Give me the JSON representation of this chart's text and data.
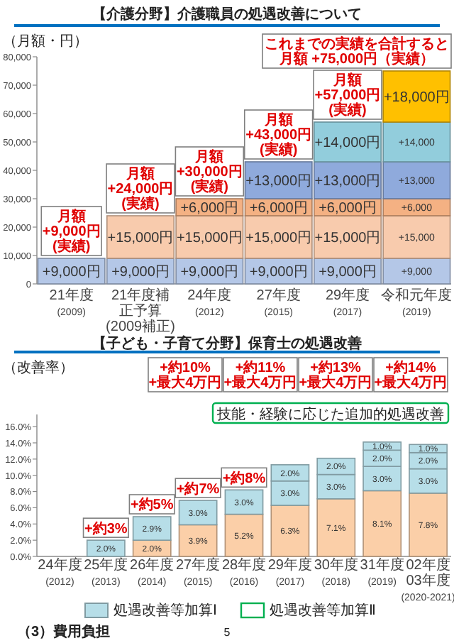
{
  "chart_data": [
    {
      "type": "bar",
      "stacked": true,
      "title": "【介護分野】介護職員の処遇改善について",
      "ylabel": "（月額・円）",
      "categories": [
        "21年度\n(2009)",
        "21年度補正予算\n(2009補正)",
        "24年度\n(2012)",
        "27年度\n(2015)",
        "29年度\n(2017)",
        "令和元年度\n(2019)"
      ],
      "ylim": [
        0,
        80000
      ],
      "yticks": [
        {
          "value": 0,
          "label": "0"
        },
        {
          "value": 10000,
          "label": "10,000"
        },
        {
          "value": 20000,
          "label": "20,000"
        },
        {
          "value": 30000,
          "label": "30,000"
        },
        {
          "value": 40000,
          "label": "40,000"
        },
        {
          "value": 50000,
          "label": "50,000"
        },
        {
          "value": 60000,
          "label": "60,000"
        },
        {
          "value": 70000,
          "label": "70,000"
        },
        {
          "value": 80000,
          "label": "80,000"
        }
      ],
      "series": [
        {
          "color": "#b4c7e7",
          "values": [
            9000,
            9000,
            9000,
            9000,
            9000,
            9000
          ],
          "value_labels": [
            "+9,000円",
            "+9,000円",
            "+9,000円",
            "+9,000円",
            "+9,000円",
            "+9,000"
          ]
        },
        {
          "color": "#f8cbad",
          "values": [
            null,
            15000,
            15000,
            15000,
            15000,
            15000
          ],
          "value_labels": [
            null,
            "+15,000円",
            "+15,000円",
            "+15,000円",
            "+15,000円",
            "+15,000"
          ]
        },
        {
          "color": "#f4b183",
          "values": [
            null,
            null,
            6000,
            6000,
            6000,
            6000
          ],
          "value_labels": [
            null,
            null,
            "+6,000円",
            "+6,000円",
            "+6,000円",
            "+6,000"
          ]
        },
        {
          "color": "#8faadc",
          "values": [
            null,
            null,
            null,
            13000,
            13000,
            13000
          ],
          "value_labels": [
            null,
            null,
            null,
            "+13,000円",
            "+13,000円",
            "+13,000"
          ]
        },
        {
          "color": "#92cddc",
          "values": [
            null,
            null,
            null,
            null,
            14000,
            14000
          ],
          "value_labels": [
            null,
            null,
            null,
            null,
            "+14,000円",
            "+14,000"
          ]
        },
        {
          "color": "#ffc000",
          "values": [
            null,
            null,
            null,
            null,
            null,
            18000
          ],
          "value_labels": [
            null,
            null,
            null,
            null,
            null,
            "+18,000円"
          ]
        }
      ],
      "annotations": [
        {
          "text": "月額\n+9,000円\n(実績)",
          "x": "21年度\n(2009)",
          "y": 9000
        },
        {
          "text": "月額\n+24,000円\n(実績)",
          "x": "21年度補正予算\n(2009補正)",
          "y": 24000
        },
        {
          "text": "月額\n+30,000円\n(実績)",
          "x": "24年度\n(2012)",
          "y": 30000
        },
        {
          "text": "月額\n+43,000円\n(実績)",
          "x": "27年度\n(2015)",
          "y": 43000
        },
        {
          "text": "月額\n+57,000円\n(実績)",
          "x": "29年度\n(2017)",
          "y": 57000
        },
        {
          "text": "これまでの実績を合計すると月額 +75,000円（実績）",
          "x": "令和元年度\n(2019)",
          "y": 75000
        }
      ]
    },
    {
      "type": "bar",
      "stacked": true,
      "title": "【子ども・子育て分野】保育士の処遇改善",
      "ylabel": "（改善率）",
      "categories": [
        "24年度\n(2012)",
        "25年度\n(2013)",
        "26年度\n(2014)",
        "27年度\n(2015)",
        "28年度\n(2016)",
        "29年度\n(2017)",
        "30年度\n(2018)",
        "31年度\n(2019)",
        "02年度\n03年度\n(2020-2021)"
      ],
      "ylim": [
        0,
        17.5
      ],
      "yticks": [
        {
          "value": 0,
          "label": "0.0%"
        },
        {
          "value": 2,
          "label": "2.0%"
        },
        {
          "value": 4,
          "label": "4.0%"
        },
        {
          "value": 6,
          "label": "6.0%"
        },
        {
          "value": 8,
          "label": "8.0%"
        },
        {
          "value": 10,
          "label": "10.0%"
        },
        {
          "value": 12,
          "label": "12.0%"
        },
        {
          "value": 14,
          "label": "14.0%"
        },
        {
          "value": 16,
          "label": "16.0%"
        }
      ],
      "legend": "bottom",
      "series": [
        {
          "color": "#fbcfa8",
          "values": [
            null,
            null,
            2.0,
            3.9,
            5.2,
            6.3,
            7.1,
            8.1,
            7.8
          ],
          "value_labels": [
            null,
            null,
            "2.0%",
            "3.9%",
            "5.2%",
            "6.3%",
            "7.1%",
            "8.1%",
            "7.8%"
          ]
        },
        {
          "name": "処遇改善等加算Ⅰ",
          "color": "#b7dee8",
          "values": [
            null,
            2.0,
            2.9,
            3.0,
            3.0,
            3.0,
            3.0,
            3.0,
            3.0
          ],
          "value_labels": [
            null,
            "2.0%",
            "2.9%",
            "3.0%",
            "3.0%",
            "3.0%",
            "3.0%",
            "3.0%",
            "3.0%"
          ]
        },
        {
          "color": "#b7dee8",
          "values": [
            null,
            null,
            null,
            null,
            null,
            2.0,
            2.0,
            2.0,
            2.0
          ],
          "value_labels": [
            null,
            null,
            null,
            null,
            null,
            "2.0%",
            "2.0%",
            "2.0%",
            "2.0%"
          ]
        },
        {
          "color": "#b7dee8",
          "values": [
            null,
            null,
            null,
            null,
            null,
            null,
            null,
            1.0,
            1.0
          ],
          "value_labels": [
            null,
            null,
            null,
            null,
            null,
            null,
            null,
            "1.0%",
            "1.0%"
          ]
        }
      ],
      "annotations": [
        {
          "text": "+約3%",
          "x": "25年度\n(2013)",
          "y": 2.0
        },
        {
          "text": "+約5%",
          "x": "26年度\n(2014)",
          "y": 4.9
        },
        {
          "text": "+約7%",
          "x": "27年度\n(2015)",
          "y": 6.9
        },
        {
          "text": "+約8%",
          "x": "28年度\n(2016)",
          "y": 8.2
        },
        "+約10%\n+最大4万円",
        "+約11%\n+最大4万円",
        "+約13%\n+最大4万円",
        "+約14%\n+最大4万円",
        "技能・経験に応じた追加的処遇改善",
        "処遇改善等加算Ⅱ",
        "（3）費用負担",
        "5"
      ]
    }
  ]
}
